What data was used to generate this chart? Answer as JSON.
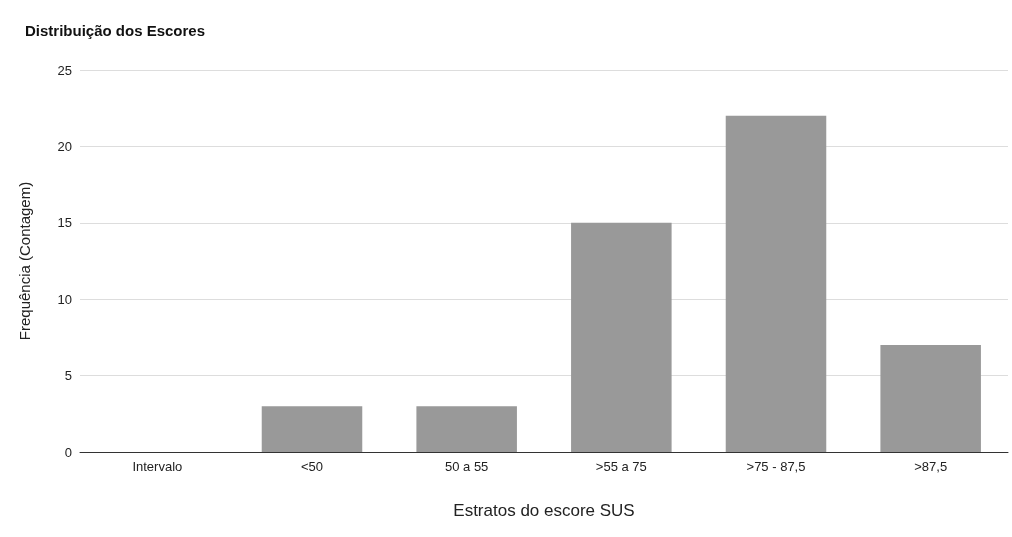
{
  "chart_data": {
    "type": "bar",
    "title": "Distribuição dos Escores",
    "xlabel": "Estratos do escore SUS",
    "ylabel": "Frequência (Contagem)",
    "categories": [
      "Intervalo",
      "<50",
      "50 a 55",
      ">55 a 75",
      ">75 - 87,5",
      ">87,5"
    ],
    "values": [
      0,
      3,
      3,
      15,
      22,
      7
    ],
    "color": "#999999",
    "ylim": [
      0,
      25
    ],
    "yticks": [
      0,
      5,
      10,
      15,
      20,
      25
    ],
    "grid": "y"
  }
}
